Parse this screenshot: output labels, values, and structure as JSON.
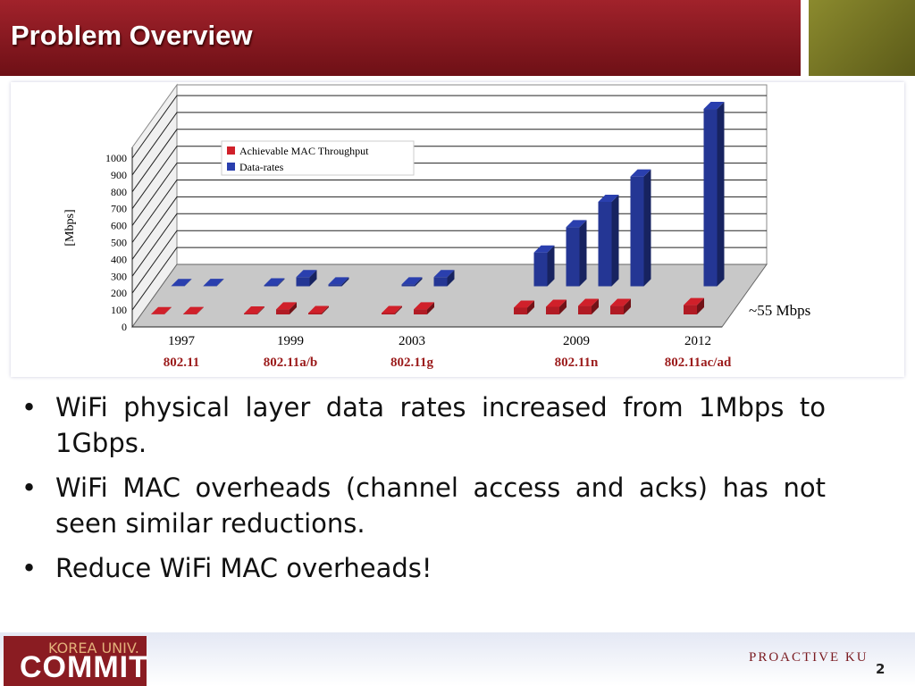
{
  "slide": {
    "title": "Problem Overview",
    "bullets": [
      "WiFi physical layer data rates increased from 1Mbps to 1Gbps.",
      "WiFi MAC overheads (channel access and acks) has not seen similar reductions.",
      "Reduce WiFi MAC overheads!"
    ],
    "logo_top": "KOREA UNIV.",
    "logo_main": "COMMIT",
    "proactive": "PROACTIVE KU",
    "page_number": "2"
  },
  "chart_data": {
    "type": "bar3d",
    "y_label": "[Mbps]",
    "annotation": "~55 Mbps",
    "categories": [
      {
        "year": "1997",
        "standard": "802.11"
      },
      {
        "year": "1999",
        "standard": "802.11a/b"
      },
      {
        "year": "2003",
        "standard": "802.11g"
      },
      {
        "year": "2009",
        "standard": "802.11n"
      },
      {
        "year": "2012",
        "standard": "802.11ac/ad"
      }
    ],
    "series": [
      {
        "name": "Achievable MAC Throughput",
        "color": "#d0202a",
        "values": [
          [
            1,
            2
          ],
          [
            5,
            30,
            8
          ],
          [
            8,
            30
          ],
          [
            40,
            45,
            50,
            50
          ],
          [
            55
          ]
        ]
      },
      {
        "name": "Data-rates",
        "color": "#2a3fae",
        "values": [
          [
            1,
            2
          ],
          [
            5.5,
            54,
            11
          ],
          [
            11,
            54
          ],
          [
            200,
            350,
            500,
            650
          ],
          [
            1050
          ]
        ]
      }
    ],
    "ylim": [
      0,
      1000
    ],
    "yticks": [
      0,
      100,
      200,
      300,
      400,
      500,
      600,
      700,
      800,
      900,
      1000
    ],
    "grid": true,
    "legend": "top-left"
  }
}
